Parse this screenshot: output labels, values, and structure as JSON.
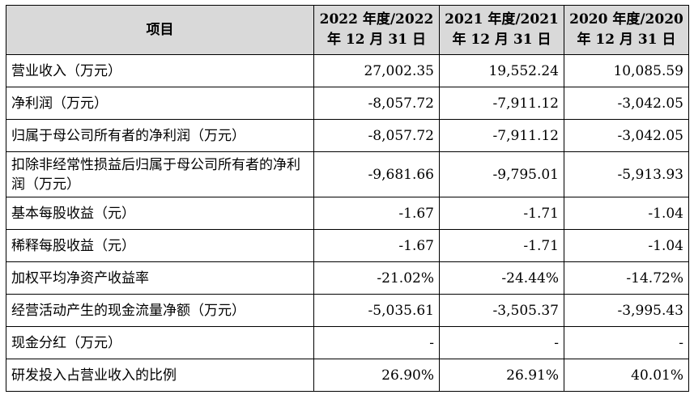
{
  "headers": {
    "item": "项目",
    "col1": [
      "2022 年度/2022",
      "年 12 月 31 日"
    ],
    "col2": [
      "2021 年度/2021",
      "年 12 月 31 日"
    ],
    "col3": [
      "2020 年度/2020",
      "年 12 月 31 日"
    ]
  },
  "rows": [
    {
      "label": "营业收入（万元）",
      "v": [
        "27,002.35",
        "19,552.24",
        "10,085.59"
      ]
    },
    {
      "label": "净利润（万元）",
      "v": [
        "-8,057.72",
        "-7,911.12",
        "-3,042.05"
      ]
    },
    {
      "label": "归属于母公司所有者的净利润（万元）",
      "v": [
        "-8,057.72",
        "-7,911.12",
        "-3,042.05"
      ]
    },
    {
      "label": "扣除非经常性损益后归属于母公司所有者的净利润（万元）",
      "v": [
        "-9,681.66",
        "-9,795.01",
        "-5,913.93"
      ]
    },
    {
      "label": "基本每股收益（元）",
      "v": [
        "-1.67",
        "-1.71",
        "-1.04"
      ]
    },
    {
      "label": "稀释每股收益（元）",
      "v": [
        "-1.67",
        "-1.71",
        "-1.04"
      ]
    },
    {
      "label": "加权平均净资产收益率",
      "v": [
        "-21.02%",
        "-24.44%",
        "-14.72%"
      ]
    },
    {
      "label": "经营活动产生的现金流量净额（万元）",
      "v": [
        "-5,035.61",
        "-3,505.37",
        "-3,995.43"
      ]
    },
    {
      "label": "现金分红（万元）",
      "v": [
        "-",
        "-",
        "-"
      ]
    },
    {
      "label": "研发投入占营业收入的比例",
      "v": [
        "26.90%",
        "26.91%",
        "40.01%"
      ]
    }
  ]
}
